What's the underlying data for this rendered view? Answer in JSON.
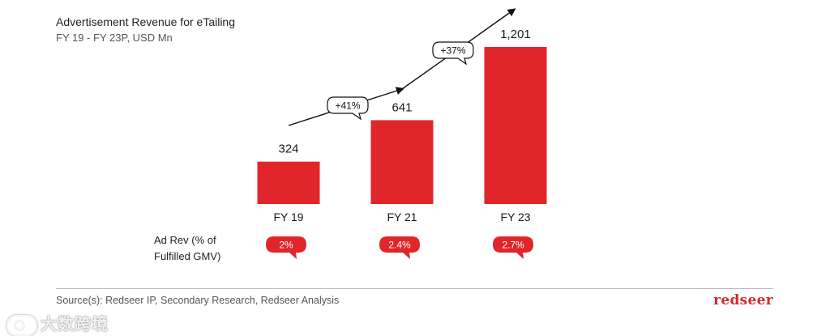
{
  "header": {
    "title": "Advertisement Revenue for eTailing",
    "subtitle": "FY 19 - FY 23P, USD Mn"
  },
  "chart_data": {
    "type": "bar",
    "categories": [
      "FY 19",
      "FY 21",
      "FY 23"
    ],
    "values": [
      324,
      641,
      1201
    ],
    "value_labels": [
      "324",
      "641",
      "1,201"
    ],
    "growth_labels": [
      "+41%",
      "+37%"
    ],
    "ad_rev_share": [
      "2%",
      "2.4%",
      "2.7%"
    ],
    "ylim": [
      0,
      1201
    ],
    "bar_color": "#e0262b",
    "grid": false
  },
  "row_label": {
    "line1": "Ad Rev (% of",
    "line2": "Fulfilled GMV)"
  },
  "footer": {
    "source": "Source(s): Redseer IP, Secondary Research, Redseer Analysis",
    "brand": "redseer"
  },
  "watermark": {
    "text": "大数跨境"
  }
}
